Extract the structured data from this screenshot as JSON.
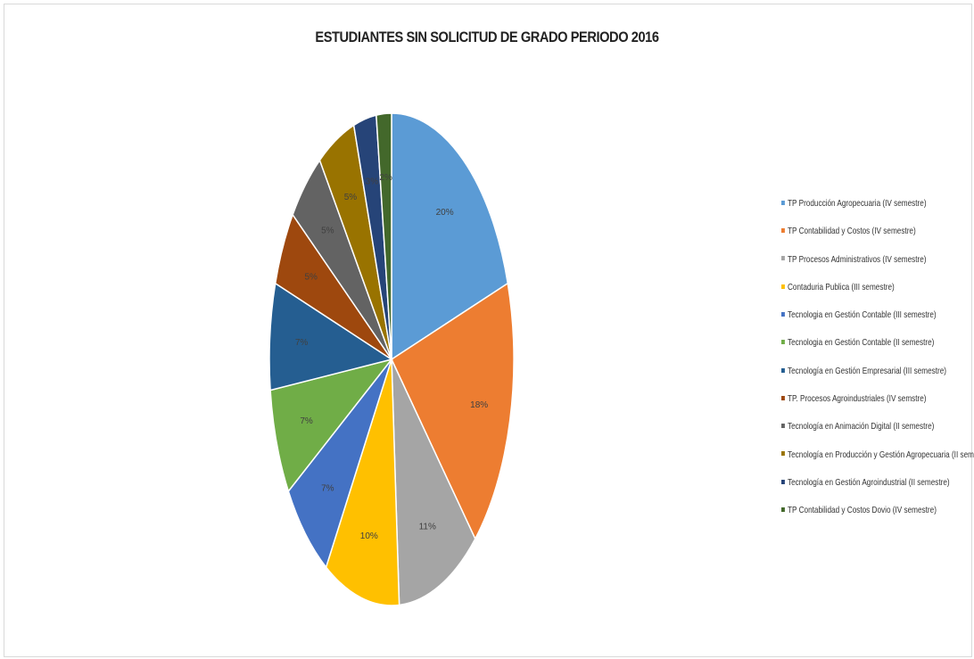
{
  "chart_data": {
    "type": "pie",
    "title": "ESTUDIANTES SIN SOLICITUD DE GRADO PERIODO 2016",
    "legend_position": "right",
    "slices": [
      {
        "name": "TP Producción Agropecuaria (IV semestre)",
        "value": 20,
        "label": "20%",
        "color": "#5b9bd5"
      },
      {
        "name": "TP Contabilidad y Costos (IV semestre)",
        "value": 18,
        "label": "18%",
        "color": "#ed7d31"
      },
      {
        "name": "TP Procesos Administrativos (IV semestre)",
        "value": 11,
        "label": "11%",
        "color": "#a5a5a5"
      },
      {
        "name": "Contaduria Publica (III semestre)",
        "value": 10,
        "label": "10%",
        "color": "#ffc000"
      },
      {
        "name": "Tecnologia en Gestión Contable (III semestre)",
        "value": 7,
        "label": "7%",
        "color": "#4472c4"
      },
      {
        "name": "Tecnologia en Gestión Contable (II semestre)",
        "value": 7,
        "label": "7%",
        "color": "#70ad47"
      },
      {
        "name": "Tecnología en Gestión Empresarial (III semestre)",
        "value": 7,
        "label": "7%",
        "color": "#255e91"
      },
      {
        "name": "TP. Procesos Agroindustriales (IV semstre)",
        "value": 5,
        "label": "5%",
        "color": "#9e480e"
      },
      {
        "name": "Tecnología en Animación Digital (II semestre)",
        "value": 5,
        "label": "5%",
        "color": "#636363"
      },
      {
        "name": "Tecnología en Producción y Gestión Agropecuaria (II semestre)",
        "value": 5,
        "label": "5%",
        "color": "#997300"
      },
      {
        "name": "Tecnología en Gestión Agroindustrial (II semestre)",
        "value": 3,
        "label": "3%",
        "color": "#264478"
      },
      {
        "name": "TP Contabilidad y Costos Dovio (IV semestre)",
        "value": 2,
        "label": "2%",
        "color": "#43682b"
      }
    ]
  }
}
